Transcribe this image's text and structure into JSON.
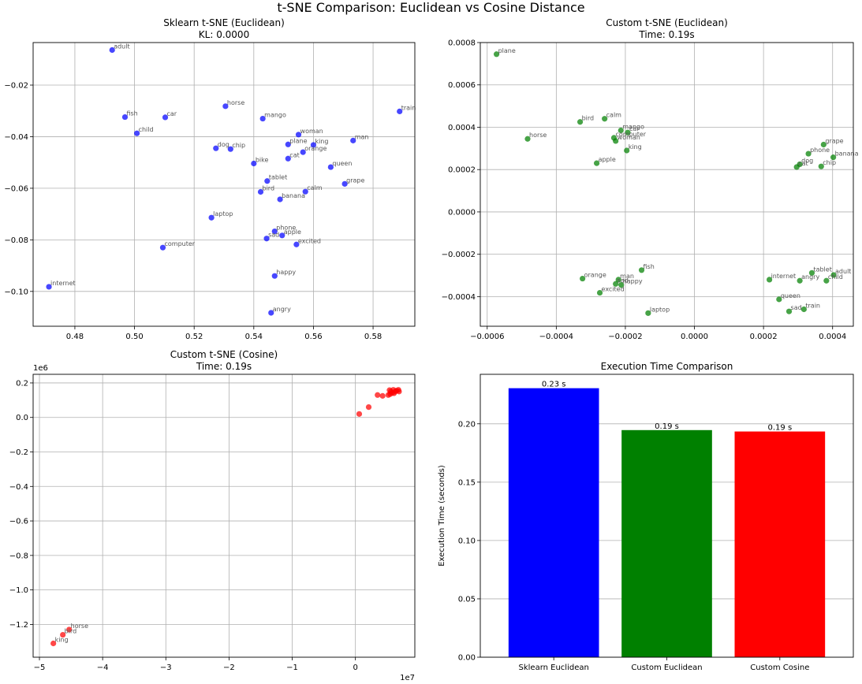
{
  "suptitle": "t-SNE Comparison: Euclidean vs Cosine Distance",
  "colors": {
    "blue": "#0000ff",
    "green": "#008000",
    "red": "#ff0000",
    "grid": "#b0b0b0",
    "label": "#555555"
  },
  "chart_data": [
    {
      "type": "scatter",
      "title": "Sklearn t-SNE (Euclidean)",
      "subtitle": "KL: 0.0000",
      "color": "blue",
      "grid": true,
      "xlim": [
        0.466,
        0.594
      ],
      "ylim": [
        -0.1135,
        -0.0035
      ],
      "xticks": [
        0.48,
        0.5,
        0.52,
        0.54,
        0.56,
        0.58
      ],
      "xtick_labels": [
        "0.48",
        "0.50",
        "0.52",
        "0.54",
        "0.56",
        "0.58"
      ],
      "yticks": [
        -0.02,
        -0.04,
        -0.06,
        -0.08,
        -0.1
      ],
      "ytick_labels": [
        "−0.02",
        "−0.04",
        "−0.06",
        "−0.08",
        "−0.10"
      ],
      "points": [
        {
          "label": "adult",
          "x": 0.4925,
          "y": -0.0064
        },
        {
          "label": "horse",
          "x": 0.5305,
          "y": -0.0282
        },
        {
          "label": "train",
          "x": 0.5889,
          "y": -0.0302
        },
        {
          "label": "fish",
          "x": 0.4968,
          "y": -0.0324
        },
        {
          "label": "car",
          "x": 0.5103,
          "y": -0.0325
        },
        {
          "label": "mango",
          "x": 0.543,
          "y": -0.033
        },
        {
          "label": "child",
          "x": 0.5008,
          "y": -0.0387
        },
        {
          "label": "woman",
          "x": 0.555,
          "y": -0.0392
        },
        {
          "label": "man",
          "x": 0.5733,
          "y": -0.0415
        },
        {
          "label": "plane",
          "x": 0.5515,
          "y": -0.043
        },
        {
          "label": "king",
          "x": 0.56,
          "y": -0.0432
        },
        {
          "label": "dog",
          "x": 0.5273,
          "y": -0.0445
        },
        {
          "label": "chip",
          "x": 0.5322,
          "y": -0.0448
        },
        {
          "label": "orange",
          "x": 0.5565,
          "y": -0.046
        },
        {
          "label": "cat",
          "x": 0.5515,
          "y": -0.0485
        },
        {
          "label": "bike",
          "x": 0.54,
          "y": -0.0504
        },
        {
          "label": "queen",
          "x": 0.5658,
          "y": -0.0518
        },
        {
          "label": "tablet",
          "x": 0.5445,
          "y": -0.0572
        },
        {
          "label": "grape",
          "x": 0.5705,
          "y": -0.0583
        },
        {
          "label": "bird",
          "x": 0.5423,
          "y": -0.0614
        },
        {
          "label": "calm",
          "x": 0.5573,
          "y": -0.0613
        },
        {
          "label": "banana",
          "x": 0.5488,
          "y": -0.0643
        },
        {
          "label": "laptop",
          "x": 0.5258,
          "y": -0.0714
        },
        {
          "label": "phone",
          "x": 0.547,
          "y": -0.0767
        },
        {
          "label": "apple",
          "x": 0.5495,
          "y": -0.0783
        },
        {
          "label": "sad",
          "x": 0.5443,
          "y": -0.0795
        },
        {
          "label": "excited",
          "x": 0.5543,
          "y": -0.0818
        },
        {
          "label": "computer",
          "x": 0.5095,
          "y": -0.083
        },
        {
          "label": "happy",
          "x": 0.547,
          "y": -0.094
        },
        {
          "label": "internet",
          "x": 0.4713,
          "y": -0.0982
        },
        {
          "label": "angry",
          "x": 0.5458,
          "y": -0.1083
        }
      ]
    },
    {
      "type": "scatter",
      "title": "Custom t-SNE (Euclidean)",
      "subtitle": "Time: 0.19s",
      "color": "green",
      "grid": true,
      "xlim": [
        -0.00062,
        0.00046
      ],
      "ylim": [
        -0.00054,
        0.0008
      ],
      "xticks": [
        -0.0006,
        -0.0004,
        -0.0002,
        0.0,
        0.0002,
        0.0004
      ],
      "xtick_labels": [
        "−0.0006",
        "−0.0004",
        "−0.0002",
        "0.0000",
        "0.0002",
        "0.0004"
      ],
      "yticks": [
        0.0008,
        0.0006,
        0.0004,
        0.0002,
        0.0,
        -0.0002,
        -0.0004
      ],
      "ytick_labels": [
        "0.0008",
        "0.0006",
        "0.0004",
        "0.0002",
        "0.0000",
        "−0.0002",
        "−0.0004"
      ],
      "points": [
        {
          "label": "plane",
          "x": -0.000573,
          "y": 0.000745
        },
        {
          "label": "horse",
          "x": -0.000483,
          "y": 0.000345
        },
        {
          "label": "bird",
          "x": -0.000331,
          "y": 0.000425
        },
        {
          "label": "calm",
          "x": -0.00026,
          "y": 0.00044
        },
        {
          "label": "mango",
          "x": -0.000213,
          "y": 0.000385
        },
        {
          "label": "car",
          "x": -0.000193,
          "y": 0.000375
        },
        {
          "label": "computer",
          "x": -0.000233,
          "y": 0.00035
        },
        {
          "label": "woman",
          "x": -0.000228,
          "y": 0.000335
        },
        {
          "label": "king",
          "x": -0.000196,
          "y": 0.00029
        },
        {
          "label": "apple",
          "x": -0.000283,
          "y": 0.00023
        },
        {
          "label": "grape",
          "x": 0.000374,
          "y": 0.000318
        },
        {
          "label": "phone",
          "x": 0.00033,
          "y": 0.000275
        },
        {
          "label": "banana",
          "x": 0.000402,
          "y": 0.000258
        },
        {
          "label": "dog",
          "x": 0.000305,
          "y": 0.000225
        },
        {
          "label": "cat",
          "x": 0.000296,
          "y": 0.000212
        },
        {
          "label": "chip",
          "x": 0.000367,
          "y": 0.000215
        },
        {
          "label": "fish",
          "x": -0.000153,
          "y": -0.000275
        },
        {
          "label": "orange",
          "x": -0.000324,
          "y": -0.000315
        },
        {
          "label": "man",
          "x": -0.00022,
          "y": -0.00032
        },
        {
          "label": "sad",
          "x": -0.000228,
          "y": -0.00034
        },
        {
          "label": "happy",
          "x": -0.000212,
          "y": -0.000345
        },
        {
          "label": "excited",
          "x": -0.000274,
          "y": -0.000382
        },
        {
          "label": "laptop",
          "x": -0.000134,
          "y": -0.000478
        },
        {
          "label": "tablet",
          "x": 0.00034,
          "y": -0.000288
        },
        {
          "label": "adult",
          "x": 0.000403,
          "y": -0.000298
        },
        {
          "label": "internet",
          "x": 0.000217,
          "y": -0.00032
        },
        {
          "label": "angry",
          "x": 0.000305,
          "y": -0.000325
        },
        {
          "label": "child",
          "x": 0.000382,
          "y": -0.000325
        },
        {
          "label": "queen",
          "x": 0.000245,
          "y": -0.000413
        },
        {
          "label": "train",
          "x": 0.000317,
          "y": -0.00046
        },
        {
          "label": "sad",
          "x": 0.000274,
          "y": -0.00047
        }
      ]
    },
    {
      "type": "scatter",
      "title": "Custom t-SNE (Cosine)",
      "subtitle": "Time: 0.19s",
      "color": "red",
      "grid": true,
      "xlim": [
        -51000000,
        9400000
      ],
      "ylim": [
        -13900000,
        2500000
      ],
      "x_offset_label": "1e7",
      "y_offset_label": "1e6",
      "xticks": [
        -50000000,
        -40000000,
        -30000000,
        -20000000,
        -10000000,
        0
      ],
      "xtick_labels": [
        "−5",
        "−4",
        "−3",
        "−2",
        "−1",
        "0"
      ],
      "yticks": [
        2000000,
        0,
        -2000000,
        -4000000,
        -6000000,
        -8000000,
        -10000000,
        -12000000
      ],
      "ytick_labels": [
        "0.2",
        "0.0",
        "−0.2",
        "−0.4",
        "−0.6",
        "−0.8",
        "−1.0",
        "−1.2"
      ],
      "points": [
        {
          "label": "",
          "x": 5600000,
          "y": 1500000
        },
        {
          "label": "",
          "x": 6000000,
          "y": 1600000
        },
        {
          "label": "",
          "x": 6300000,
          "y": 1500000
        },
        {
          "label": "",
          "x": 5500000,
          "y": 1350000
        },
        {
          "label": "",
          "x": 6500000,
          "y": 1550000
        },
        {
          "label": "",
          "x": 5800000,
          "y": 1420000
        },
        {
          "label": "",
          "x": 6800000,
          "y": 1600000
        },
        {
          "label": "",
          "x": 5200000,
          "y": 1300000
        },
        {
          "label": "",
          "x": 4300000,
          "y": 1250000
        },
        {
          "label": "",
          "x": 3500000,
          "y": 1300000
        },
        {
          "label": "",
          "x": 6100000,
          "y": 1400000
        },
        {
          "label": "",
          "x": 5400000,
          "y": 1580000
        },
        {
          "label": "",
          "x": 6900000,
          "y": 1500000
        },
        {
          "label": "",
          "x": 2100000,
          "y": 600000
        },
        {
          "label": "",
          "x": 600000,
          "y": 200000
        },
        {
          "label": "horse",
          "x": -45300000,
          "y": -12300000
        },
        {
          "label": "bird",
          "x": -46300000,
          "y": -12600000
        },
        {
          "label": "king",
          "x": -47800000,
          "y": -13100000
        }
      ]
    },
    {
      "type": "bar",
      "title": "Execution Time Comparison",
      "ylabel": "Execution Time (seconds)",
      "ylim": [
        0,
        0.2424
      ],
      "yticks": [
        0.0,
        0.05,
        0.1,
        0.15,
        0.2
      ],
      "ytick_labels": [
        "0.00",
        "0.05",
        "0.10",
        "0.15",
        "0.20"
      ],
      "grid": true,
      "categories": [
        "Sklearn Euclidean",
        "Custom Euclidean",
        "Custom Cosine"
      ],
      "values": [
        0.2305,
        0.1946,
        0.1934
      ],
      "bar_labels": [
        "0.23 s",
        "0.19 s",
        "0.19 s"
      ],
      "bar_colors": [
        "blue",
        "green",
        "red"
      ]
    }
  ]
}
